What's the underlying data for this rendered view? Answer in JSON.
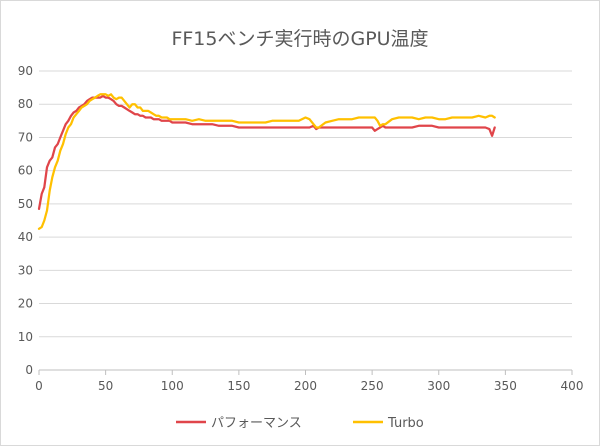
{
  "chart_data": {
    "type": "line",
    "title": "FF15ベンチ実行時のGPU温度",
    "xlabel": "",
    "ylabel": "",
    "xlim": [
      0,
      400
    ],
    "ylim": [
      0,
      90
    ],
    "xticks": [
      0,
      50,
      100,
      150,
      200,
      250,
      300,
      350,
      400
    ],
    "yticks": [
      0,
      10,
      20,
      30,
      40,
      50,
      60,
      70,
      80,
      90
    ],
    "grid": "horizontal",
    "legend_position": "bottom",
    "series": [
      {
        "name": "パフォーマンス",
        "color": "#e0454a",
        "x": [
          0,
          2,
          4,
          6,
          8,
          10,
          12,
          14,
          16,
          18,
          20,
          22,
          24,
          26,
          28,
          30,
          32,
          34,
          36,
          38,
          40,
          42,
          44,
          46,
          48,
          50,
          52,
          54,
          56,
          58,
          60,
          62,
          64,
          66,
          68,
          70,
          72,
          74,
          76,
          78,
          80,
          82,
          84,
          86,
          88,
          90,
          92,
          94,
          96,
          98,
          100,
          105,
          110,
          115,
          120,
          125,
          130,
          135,
          140,
          145,
          150,
          155,
          160,
          165,
          170,
          175,
          180,
          185,
          190,
          195,
          200,
          203,
          206,
          208,
          210,
          215,
          220,
          225,
          230,
          235,
          240,
          245,
          250,
          252,
          254,
          256,
          258,
          260,
          265,
          270,
          275,
          280,
          285,
          290,
          295,
          300,
          305,
          310,
          315,
          320,
          325,
          330,
          335,
          338,
          340,
          342
        ],
        "y": [
          48.5,
          53,
          55,
          61,
          63,
          64,
          67,
          68,
          70,
          72,
          74,
          75,
          76.5,
          77.5,
          78,
          79,
          79.5,
          80,
          81,
          81.5,
          82,
          82,
          82,
          82,
          82.5,
          82,
          82,
          81.5,
          81,
          80,
          79.5,
          79.5,
          79,
          78.5,
          78,
          77.5,
          77,
          77,
          76.5,
          76.5,
          76,
          76,
          76,
          75.5,
          75.5,
          75.5,
          75,
          75,
          75,
          75,
          74.5,
          74.5,
          74.5,
          74,
          74,
          74,
          74,
          73.5,
          73.5,
          73.5,
          73,
          73,
          73,
          73,
          73,
          73,
          73,
          73,
          73,
          73,
          73,
          73,
          73.5,
          72.5,
          73,
          73,
          73,
          73,
          73,
          73,
          73,
          73,
          73,
          72,
          72.5,
          73,
          73.5,
          73,
          73,
          73,
          73,
          73,
          73.5,
          73.5,
          73.5,
          73,
          73,
          73,
          73,
          73,
          73,
          73,
          73,
          72.5,
          70.5,
          73
        ]
      },
      {
        "name": "Turbo",
        "color": "#ffc000",
        "x": [
          0,
          2,
          4,
          6,
          8,
          10,
          12,
          14,
          16,
          18,
          20,
          22,
          24,
          26,
          28,
          30,
          32,
          34,
          36,
          38,
          40,
          42,
          44,
          46,
          48,
          50,
          52,
          54,
          56,
          58,
          60,
          62,
          64,
          66,
          68,
          70,
          72,
          74,
          76,
          78,
          80,
          82,
          84,
          86,
          88,
          90,
          92,
          94,
          96,
          98,
          100,
          105,
          110,
          115,
          120,
          125,
          130,
          135,
          140,
          145,
          150,
          155,
          160,
          165,
          170,
          175,
          180,
          185,
          190,
          195,
          200,
          203,
          206,
          208,
          210,
          215,
          220,
          225,
          230,
          235,
          240,
          245,
          250,
          252,
          254,
          256,
          258,
          260,
          265,
          270,
          275,
          280,
          285,
          290,
          295,
          300,
          305,
          310,
          315,
          320,
          325,
          330,
          335,
          338,
          340,
          342
        ],
        "y": [
          42.5,
          43,
          45,
          48,
          54,
          58,
          61,
          63,
          66,
          68,
          71,
          73,
          74,
          76,
          77,
          78,
          79,
          79.5,
          80,
          81,
          81.5,
          82,
          82.5,
          83,
          83,
          83,
          82.5,
          83,
          82,
          81.5,
          82,
          82,
          81,
          80,
          79,
          80,
          80,
          79,
          79,
          78,
          78,
          78,
          77.5,
          77,
          76.5,
          76.5,
          76,
          76,
          76,
          75.5,
          75.5,
          75.5,
          75.5,
          75,
          75.5,
          75,
          75,
          75,
          75,
          75,
          74.5,
          74.5,
          74.5,
          74.5,
          74.5,
          75,
          75,
          75,
          75,
          75,
          76,
          75.5,
          74,
          73,
          73,
          74.5,
          75,
          75.5,
          75.5,
          75.5,
          76,
          76,
          76,
          76,
          75,
          73.5,
          74,
          74,
          75.5,
          76,
          76,
          76,
          75.5,
          76,
          76,
          75.5,
          75.5,
          76,
          76,
          76,
          76,
          76.5,
          76,
          76.5,
          76.5,
          76
        ]
      }
    ]
  }
}
